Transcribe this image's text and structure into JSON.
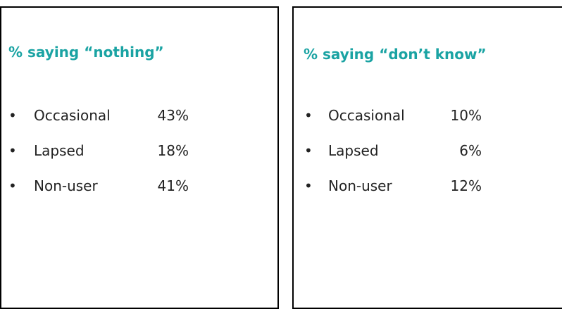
{
  "panels": [
    {
      "title": "% saying “nothing”",
      "items": [
        {
          "label": "Occasional",
          "value": "43%"
        },
        {
          "label": "Lapsed",
          "value": "18%"
        },
        {
          "label": "Non-user",
          "value": "41%"
        }
      ]
    },
    {
      "title": "% saying “don’t know”",
      "items": [
        {
          "label": "Occasional",
          "value": "10%"
        },
        {
          "label": "Lapsed",
          "value": "6%"
        },
        {
          "label": "Non-user",
          "value": "12%"
        }
      ]
    }
  ]
}
